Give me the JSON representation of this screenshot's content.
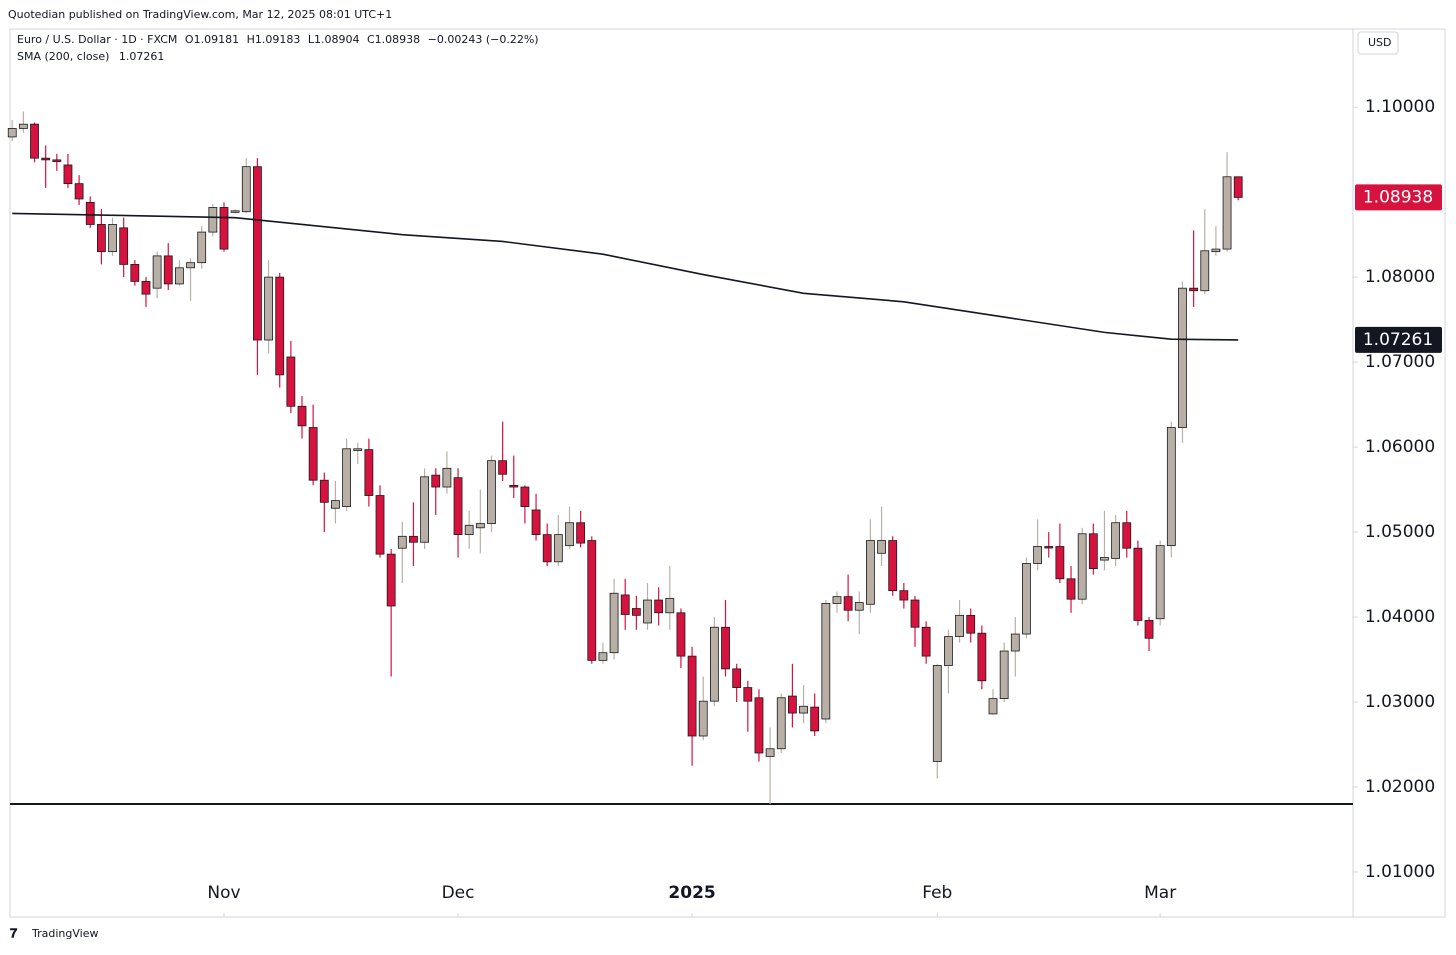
{
  "header": "Quotedian published on TradingView.com, Mar 12, 2025 08:01 UTC+1",
  "footer": "TradingView",
  "chart_data": {
    "type": "candlestick",
    "legend": {
      "symbol": "Euro / U.S. Dollar · 1D · FXCM",
      "ohlc": [
        "O1.09181",
        "H1.09183",
        "L1.08904",
        "C1.08938"
      ],
      "change": "−0.00243 (−0.22%)"
    },
    "currency": "USD",
    "up_color": "#b8b0a6",
    "down_color": "#d6133f",
    "border_color": "#1a1a1a",
    "candles": {
      "open": [
        1.0965,
        1.0975,
        1.098,
        1.094,
        1.0938,
        1.0932,
        1.091,
        1.0888,
        1.0862,
        1.083,
        1.0858,
        1.0815,
        1.0795,
        1.0787,
        1.0825,
        1.0792,
        1.0811,
        1.0817,
        1.0853,
        1.0882,
        1.0877,
        1.0877,
        1.093,
        1.0726,
        1.08,
        1.0706,
        1.0648,
        1.0623,
        1.0561,
        1.0528,
        1.053,
        1.0596,
        1.0597,
        1.0543,
        1.0474,
        1.0481,
        1.0495,
        1.0488,
        1.0567,
        1.0553,
        1.0564,
        1.0497,
        1.0505,
        1.051,
        1.0584,
        1.0555,
        1.0553,
        1.0526,
        1.0497,
        1.0465,
        1.0484,
        1.0511,
        1.049,
        1.0349,
        1.0358,
        1.0426,
        1.041,
        1.0393,
        1.042,
        1.0405,
        1.0405,
        1.0354,
        1.026,
        1.0301,
        1.0388,
        1.0339,
        1.0317,
        1.0305,
        1.0236,
        1.0245,
        1.0307,
        1.0287,
        1.0294,
        1.028,
        1.0416,
        1.0424,
        1.0408,
        1.0415,
        1.0475,
        1.049,
        1.0431,
        1.042,
        1.0388,
        1.023,
        1.0343,
        1.0377,
        1.0402,
        1.0381,
        1.0286,
        1.0304,
        1.036,
        1.038,
        1.0463,
        1.0483,
        1.0483,
        1.0445,
        1.0421,
        1.0498,
        1.0467,
        1.0469,
        1.0511,
        1.0481,
        1.0396,
        1.0398,
        1.0484,
        1.0623,
        1.0787,
        1.0784,
        1.083,
        1.0833,
        1.09181
      ],
      "high": [
        1.0985,
        1.0995,
        1.0982,
        1.0955,
        1.0945,
        1.0945,
        1.092,
        1.0895,
        1.088,
        1.087,
        1.087,
        1.082,
        1.08,
        1.083,
        1.084,
        1.082,
        1.0822,
        1.086,
        1.0886,
        1.0888,
        1.088,
        1.094,
        1.094,
        1.082,
        1.0805,
        1.0725,
        1.066,
        1.065,
        1.057,
        1.056,
        1.061,
        1.0605,
        1.061,
        1.0555,
        1.048,
        1.0512,
        1.0535,
        1.0575,
        1.0575,
        1.0595,
        1.0575,
        1.0525,
        1.055,
        1.059,
        1.063,
        1.059,
        1.0555,
        1.0545,
        1.051,
        1.052,
        1.053,
        1.0525,
        1.0495,
        1.037,
        1.0445,
        1.0445,
        1.0425,
        1.044,
        1.0435,
        1.046,
        1.041,
        1.0365,
        1.033,
        1.04,
        1.042,
        1.0345,
        1.0325,
        1.0315,
        1.027,
        1.031,
        1.0345,
        1.032,
        1.031,
        1.042,
        1.043,
        1.045,
        1.043,
        1.0515,
        1.053,
        1.0495,
        1.044,
        1.0425,
        1.0395,
        1.0345,
        1.0385,
        1.042,
        1.041,
        1.039,
        1.0315,
        1.037,
        1.04,
        1.047,
        1.0515,
        1.05,
        1.051,
        1.046,
        1.0505,
        1.051,
        1.0525,
        1.052,
        1.0525,
        1.049,
        1.04,
        1.049,
        1.063,
        1.0795,
        1.0855,
        1.088,
        1.086,
        1.0947,
        1.09183
      ],
      "low": [
        1.096,
        1.097,
        1.0935,
        1.0905,
        1.0925,
        1.0905,
        1.0885,
        1.0858,
        1.0815,
        1.0825,
        1.08,
        1.079,
        1.0765,
        1.0775,
        1.0785,
        1.079,
        1.0772,
        1.081,
        1.0848,
        1.083,
        1.0875,
        1.0875,
        1.0685,
        1.071,
        1.067,
        1.064,
        1.061,
        1.0555,
        1.05,
        1.051,
        1.0525,
        1.058,
        1.053,
        1.047,
        1.033,
        1.044,
        1.046,
        1.048,
        1.052,
        1.0545,
        1.047,
        1.048,
        1.0475,
        1.05,
        1.056,
        1.054,
        1.051,
        1.049,
        1.046,
        1.046,
        1.048,
        1.0482,
        1.0345,
        1.0345,
        1.035,
        1.0385,
        1.0385,
        1.0385,
        1.039,
        1.0385,
        1.034,
        1.0225,
        1.0255,
        1.0295,
        1.033,
        1.03,
        1.0265,
        1.023,
        1.018,
        1.024,
        1.027,
        1.0275,
        1.026,
        1.0275,
        1.0405,
        1.0395,
        1.038,
        1.0405,
        1.046,
        1.0425,
        1.041,
        1.0365,
        1.0345,
        1.021,
        1.031,
        1.037,
        1.037,
        1.0315,
        1.0285,
        1.03,
        1.033,
        1.0375,
        1.0455,
        1.047,
        1.044,
        1.0405,
        1.0415,
        1.045,
        1.0455,
        1.046,
        1.047,
        1.039,
        1.036,
        1.039,
        1.047,
        1.0605,
        1.0765,
        1.078,
        1.0825,
        1.083,
        1.08904
      ],
      "close": [
        1.0975,
        1.098,
        1.094,
        1.0938,
        1.0936,
        1.091,
        1.0892,
        1.0862,
        1.083,
        1.0862,
        1.0815,
        1.0795,
        1.078,
        1.0825,
        1.0792,
        1.0811,
        1.0817,
        1.0853,
        1.0882,
        1.0833,
        1.0878,
        1.093,
        1.0726,
        1.08,
        1.0685,
        1.0648,
        1.0625,
        1.0561,
        1.0535,
        1.0537,
        1.0598,
        1.0598,
        1.0543,
        1.0474,
        1.0413,
        1.0495,
        1.0488,
        1.0565,
        1.0553,
        1.0575,
        1.0497,
        1.0508,
        1.051,
        1.0584,
        1.0568,
        1.0553,
        1.053,
        1.0497,
        1.0465,
        1.0497,
        1.0511,
        1.0487,
        1.0349,
        1.0358,
        1.0428,
        1.0403,
        1.0402,
        1.042,
        1.0405,
        1.0422,
        1.0354,
        1.026,
        1.0301,
        1.0388,
        1.0339,
        1.0317,
        1.0301,
        1.024,
        1.0245,
        1.0305,
        1.0287,
        1.0295,
        1.0266,
        1.0416,
        1.0424,
        1.0408,
        1.0417,
        1.049,
        1.049,
        1.0431,
        1.042,
        1.0388,
        1.0354,
        1.0343,
        1.0377,
        1.0402,
        1.0381,
        1.0325,
        1.0304,
        1.036,
        1.038,
        1.0463,
        1.0483,
        1.0482,
        1.0445,
        1.0421,
        1.0498,
        1.0457,
        1.047,
        1.0511,
        1.0481,
        1.0396,
        1.0375,
        1.0484,
        1.0623,
        1.0787,
        1.0784,
        1.0831,
        1.0833,
        1.09181,
        1.08938
      ]
    },
    "sma": {
      "name": "SMA (200, close)",
      "color": "#131722",
      "x": [
        0,
        20,
        26,
        35,
        44,
        53,
        62,
        71,
        80,
        89,
        98,
        104,
        110
      ],
      "values": [
        1.0875,
        1.087,
        1.0862,
        1.085,
        1.0842,
        1.0827,
        1.0803,
        1.0781,
        1.0771,
        1.0753,
        1.0735,
        1.0727,
        1.07261
      ]
    },
    "hline": 1.018,
    "xlim": [
      -0.2,
      120.3
    ],
    "xticks": [
      {
        "value": 19,
        "label": "Nov"
      },
      {
        "value": 40,
        "label": "Dec"
      },
      {
        "value": 61,
        "label": "2025"
      },
      {
        "value": 83,
        "label": "Feb"
      },
      {
        "value": 103,
        "label": "Mar"
      }
    ],
    "ylim": [
      1.0047,
      1.1092
    ],
    "yticks": [
      {
        "value": 1.1,
        "label": "1.10000"
      },
      {
        "value": 1.08,
        "label": "1.08000"
      },
      {
        "value": 1.07,
        "label": "1.07000"
      },
      {
        "value": 1.06,
        "label": "1.06000"
      },
      {
        "value": 1.05,
        "label": "1.05000"
      },
      {
        "value": 1.04,
        "label": "1.04000"
      },
      {
        "value": 1.03,
        "label": "1.03000"
      },
      {
        "value": 1.02,
        "label": "1.02000"
      },
      {
        "value": 1.01,
        "label": "1.01000"
      }
    ]
  }
}
